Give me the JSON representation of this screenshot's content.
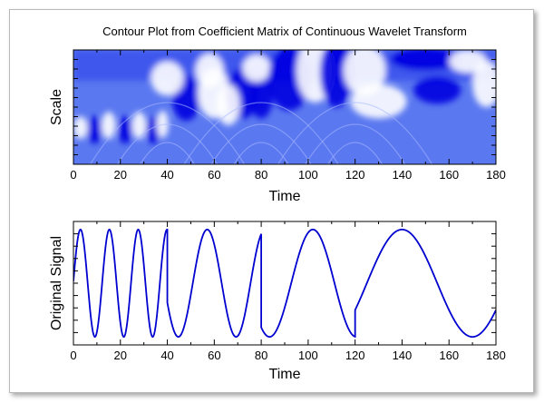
{
  "chart_data": [
    {
      "type": "heatmap",
      "title": "Contour Plot from Coefficient Matrix of Continuous Wavelet Transform",
      "xlabel": "Time",
      "ylabel": "Scale",
      "xlim": [
        0,
        180
      ],
      "xticks": [
        0,
        20,
        40,
        60,
        80,
        100,
        120,
        140,
        160,
        180
      ],
      "colormap": [
        "#0000e0",
        "#ffffff"
      ],
      "background_color": "#5a78f0"
    },
    {
      "type": "line",
      "title": "",
      "xlabel": "Time",
      "ylabel": "Original Signal",
      "xlim": [
        0,
        180
      ],
      "ylim": [
        -1.15,
        1.15
      ],
      "xticks": [
        0,
        20,
        40,
        60,
        80,
        100,
        120,
        140,
        160,
        180
      ],
      "color": "#0000d0",
      "series": [
        {
          "segments": [
            {
              "x_start": 0,
              "x_end": 40,
              "period": 12.3,
              "phase_ref": 3
            },
            {
              "x_start": 40,
              "x_end": 80,
              "period": 24.6,
              "phase_ref": 57
            },
            {
              "x_start": 80,
              "x_end": 120,
              "period": 36.9,
              "phase_ref": 102
            },
            {
              "x_start": 120,
              "x_end": 180,
              "period": 60,
              "phase_ref": 140
            }
          ]
        }
      ]
    }
  ]
}
